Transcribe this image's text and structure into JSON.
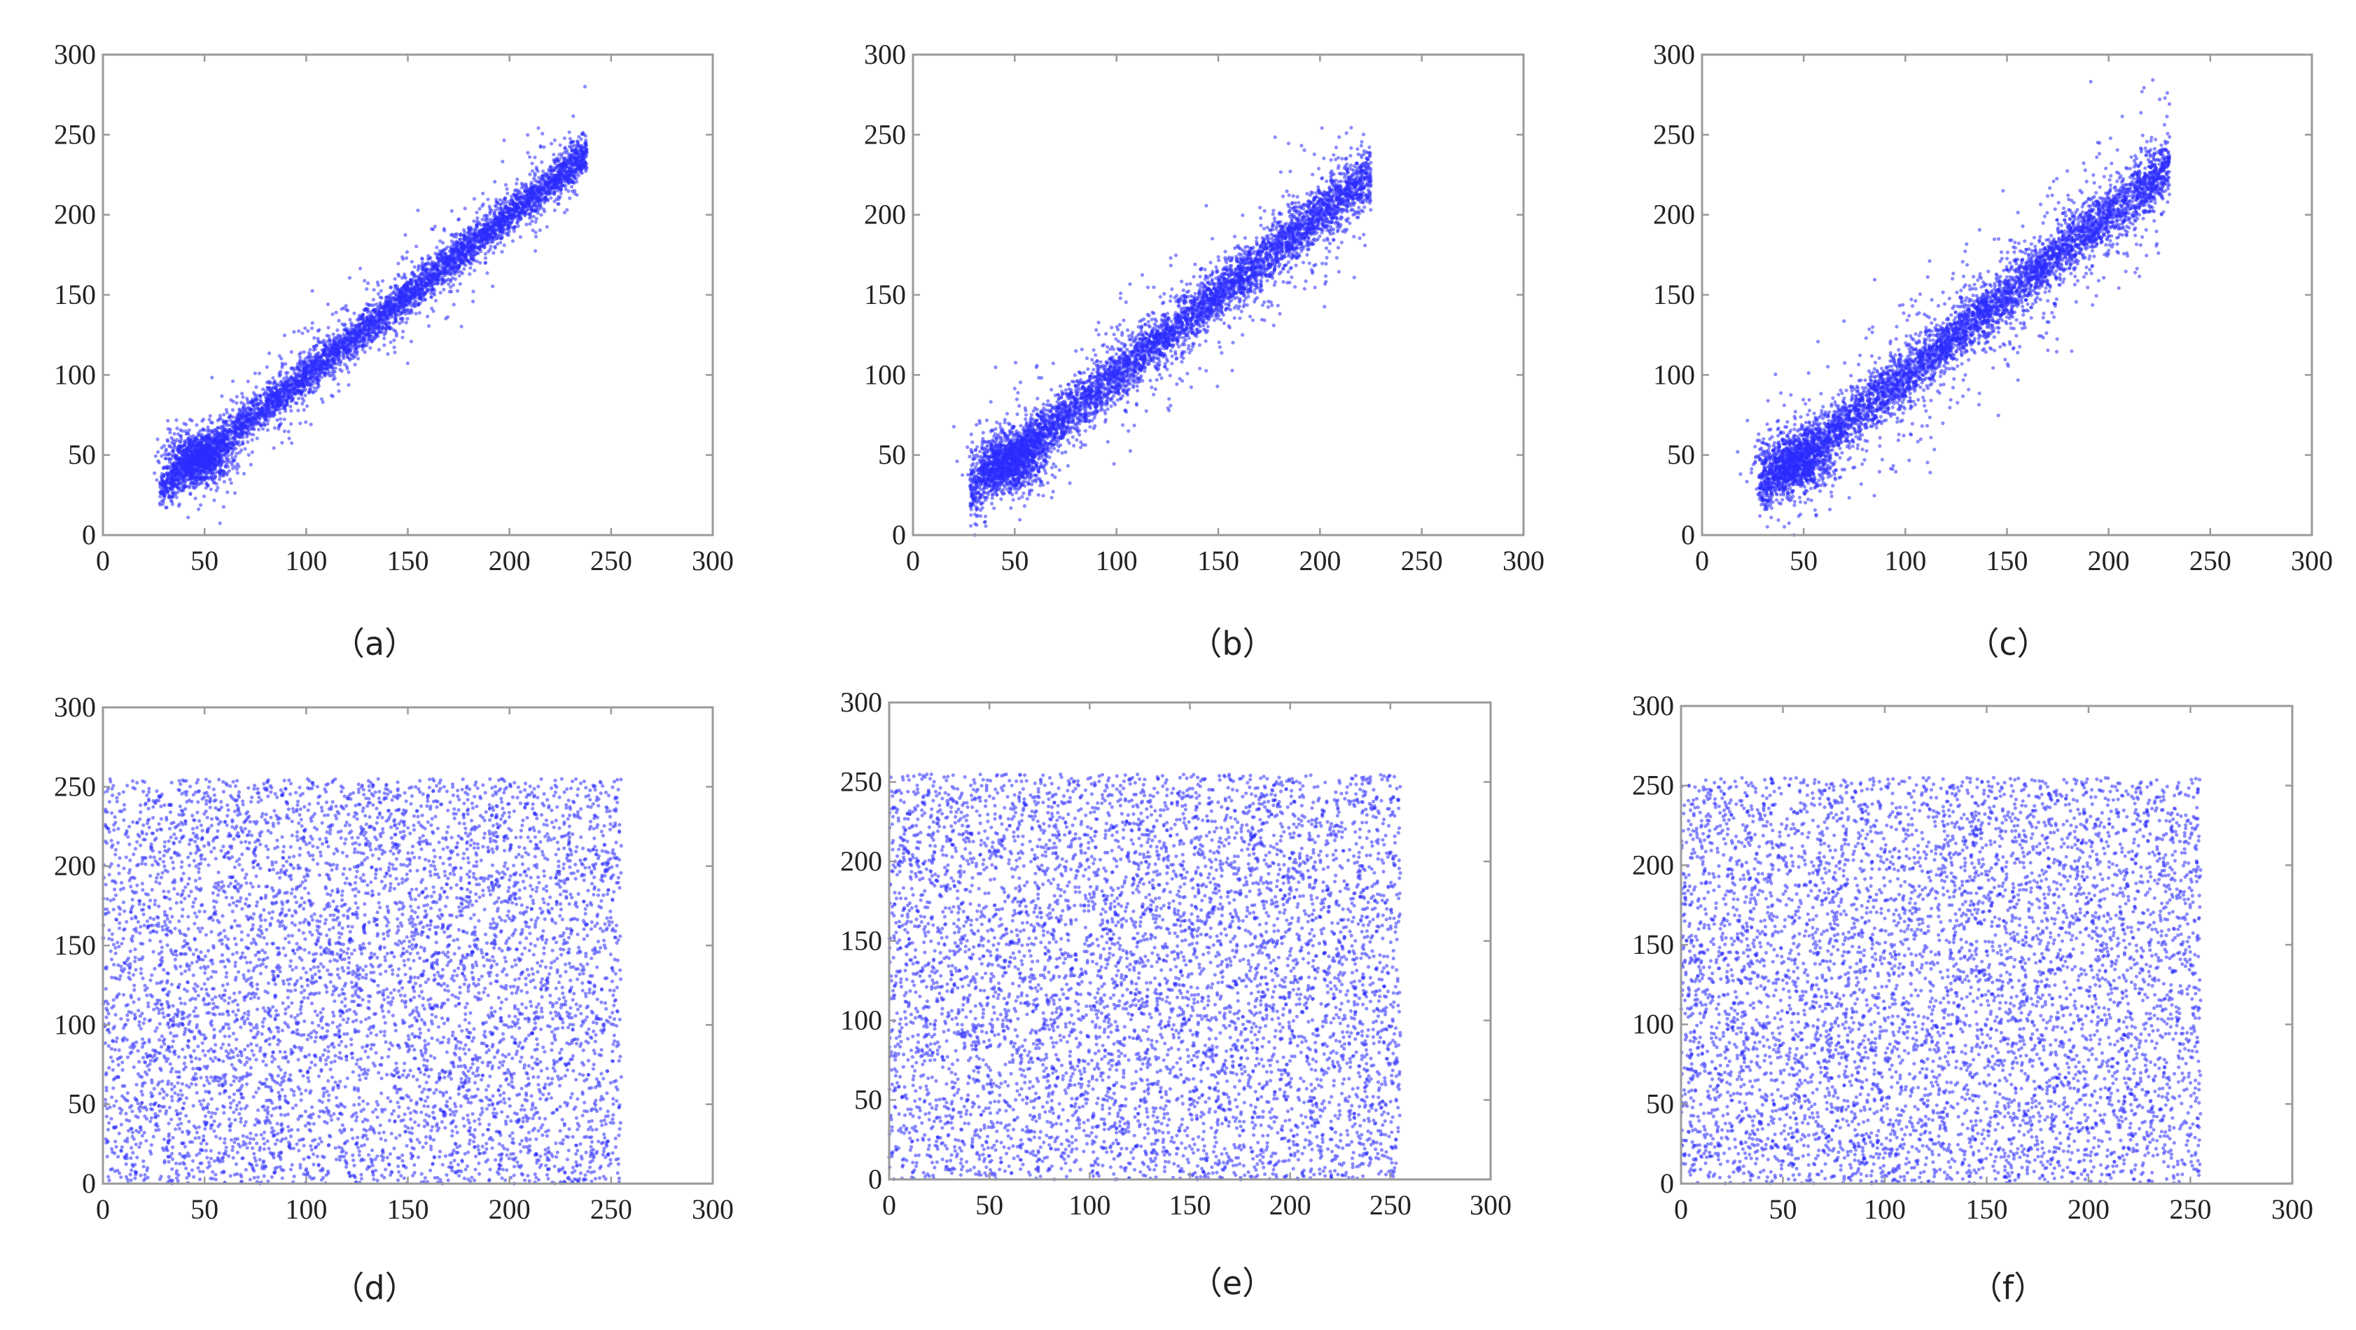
{
  "chart_data": [
    {
      "panel": "(a)",
      "type": "scatter",
      "xlim": [
        0,
        300
      ],
      "ylim": [
        0,
        300
      ],
      "xticks": [
        "0",
        "50",
        "100",
        "150",
        "200",
        "250",
        "300"
      ],
      "yticks": [
        "0",
        "50",
        "100",
        "150",
        "200",
        "250",
        "300"
      ],
      "grid": false,
      "color": "#2b2bff",
      "n_points": 6000,
      "pattern": "correlated",
      "x_range": [
        28,
        238
      ],
      "fit": {
        "slope": 1.0,
        "intercept": 0
      },
      "spread": 6,
      "outlier_fraction": 0.12,
      "outlier_spread": 16,
      "dense_cluster": {
        "x": 48,
        "y": 48,
        "spread": 8
      }
    },
    {
      "panel": "(b)",
      "type": "scatter",
      "xlim": [
        0,
        300
      ],
      "ylim": [
        0,
        300
      ],
      "xticks": [
        "0",
        "50",
        "100",
        "150",
        "200",
        "250",
        "300"
      ],
      "yticks": [
        "0",
        "50",
        "100",
        "150",
        "200",
        "250",
        "300"
      ],
      "grid": false,
      "color": "#2b2bff",
      "n_points": 6000,
      "pattern": "correlated",
      "x_range": [
        28,
        225
      ],
      "fit": {
        "slope": 1.0,
        "intercept": 0
      },
      "spread": 8,
      "outlier_fraction": 0.15,
      "outlier_spread": 22,
      "dense_cluster": {
        "x": 48,
        "y": 46,
        "spread": 9
      }
    },
    {
      "panel": "(c)",
      "type": "scatter",
      "xlim": [
        0,
        300
      ],
      "ylim": [
        0,
        300
      ],
      "xticks": [
        "0",
        "50",
        "100",
        "150",
        "200",
        "250",
        "300"
      ],
      "yticks": [
        "0",
        "50",
        "100",
        "150",
        "200",
        "250",
        "300"
      ],
      "grid": false,
      "color": "#2b2bff",
      "n_points": 6000,
      "pattern": "correlated",
      "x_range": [
        28,
        230
      ],
      "fit": {
        "slope": 1.0,
        "intercept": 0
      },
      "spread": 8,
      "outlier_fraction": 0.18,
      "outlier_spread": 25,
      "dense_cluster": {
        "x": 45,
        "y": 45,
        "spread": 9
      }
    },
    {
      "panel": "(d)",
      "type": "scatter",
      "xlim": [
        0,
        300
      ],
      "ylim": [
        0,
        300
      ],
      "xticks": [
        "0",
        "50",
        "100",
        "150",
        "200",
        "250",
        "300"
      ],
      "yticks": [
        "0",
        "50",
        "100",
        "150",
        "200",
        "250",
        "300"
      ],
      "grid": false,
      "color": "#2b2bff",
      "n_points": 6000,
      "pattern": "uniform",
      "x_range": [
        0,
        255
      ],
      "y_range": [
        0,
        255
      ]
    },
    {
      "panel": "(e)",
      "type": "scatter",
      "xlim": [
        0,
        300
      ],
      "ylim": [
        0,
        300
      ],
      "xticks": [
        "0",
        "50",
        "100",
        "150",
        "200",
        "250",
        "300"
      ],
      "yticks": [
        "0",
        "50",
        "100",
        "150",
        "200",
        "250",
        "300"
      ],
      "grid": false,
      "color": "#2b2bff",
      "n_points": 6000,
      "pattern": "uniform",
      "x_range": [
        0,
        255
      ],
      "y_range": [
        0,
        255
      ]
    },
    {
      "panel": "(f)",
      "type": "scatter",
      "xlim": [
        0,
        300
      ],
      "ylim": [
        0,
        300
      ],
      "xticks": [
        "0",
        "50",
        "100",
        "150",
        "200",
        "250",
        "300"
      ],
      "yticks": [
        "0",
        "50",
        "100",
        "150",
        "200",
        "250",
        "300"
      ],
      "grid": false,
      "color": "#2b2bff",
      "n_points": 6000,
      "pattern": "uniform",
      "x_range": [
        0,
        255
      ],
      "y_range": [
        0,
        255
      ]
    }
  ],
  "captions": {
    "a": "（a）",
    "b": "（b）",
    "c": "（c）",
    "d": "（d）",
    "e": "（e）",
    "f": "（f）"
  }
}
